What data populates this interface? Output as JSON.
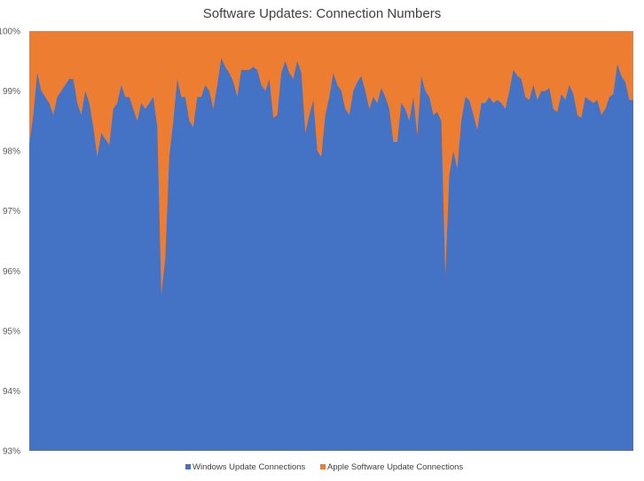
{
  "chart_data": {
    "type": "area",
    "stacked": true,
    "percent_stacked": true,
    "title": "Software Updates: Connection Numbers",
    "xlabel": "",
    "ylabel": "",
    "ylim": [
      93,
      100
    ],
    "y_ticks": [
      "93%",
      "94%",
      "95%",
      "96%",
      "97%",
      "98%",
      "99%",
      "100%"
    ],
    "grid": false,
    "legend_position": "bottom",
    "series": [
      {
        "name": "Windows Update Connections",
        "color": "#4472C4",
        "values": [
          98.1,
          98.6,
          99.3,
          99.0,
          98.9,
          98.8,
          98.6,
          98.9,
          99.0,
          99.1,
          99.2,
          99.2,
          98.8,
          98.6,
          99.0,
          98.8,
          98.4,
          97.9,
          98.3,
          98.2,
          98.1,
          98.7,
          98.8,
          99.1,
          98.9,
          98.9,
          98.7,
          98.5,
          98.8,
          98.7,
          98.8,
          98.9,
          98.4,
          95.6,
          96.2,
          97.9,
          98.5,
          99.2,
          98.9,
          98.9,
          98.5,
          98.4,
          98.9,
          98.9,
          99.1,
          99.0,
          98.7,
          99.1,
          99.55,
          99.4,
          99.3,
          99.15,
          98.9,
          99.35,
          99.35,
          99.35,
          99.4,
          99.35,
          99.1,
          99.0,
          99.2,
          98.55,
          98.6,
          99.3,
          99.5,
          99.3,
          99.2,
          99.5,
          99.3,
          98.3,
          98.6,
          98.85,
          98.0,
          97.9,
          98.6,
          98.9,
          99.3,
          99.1,
          99.0,
          98.7,
          98.6,
          99.0,
          99.15,
          99.25,
          99.0,
          98.7,
          98.9,
          98.8,
          99.05,
          98.9,
          98.7,
          98.15,
          98.15,
          98.8,
          98.7,
          98.5,
          98.9,
          98.25,
          99.25,
          99.0,
          98.9,
          98.6,
          98.65,
          98.5,
          95.9,
          97.6,
          98.0,
          97.7,
          98.5,
          98.9,
          98.85,
          98.6,
          98.35,
          98.8,
          98.8,
          98.9,
          98.8,
          98.85,
          98.8,
          98.7,
          99.0,
          99.35,
          99.25,
          99.2,
          98.9,
          98.85,
          99.1,
          98.85,
          99.0,
          99.0,
          99.05,
          98.7,
          98.65,
          98.95,
          98.85,
          99.1,
          98.95,
          98.6,
          98.55,
          98.9,
          98.85,
          98.8,
          98.85,
          98.6,
          98.7,
          98.9,
          98.95,
          99.45,
          99.25,
          99.15,
          98.85,
          98.85
        ]
      },
      {
        "name": "Apple Software Update Connections",
        "color": "#ED7D31",
        "values": []
      }
    ]
  }
}
